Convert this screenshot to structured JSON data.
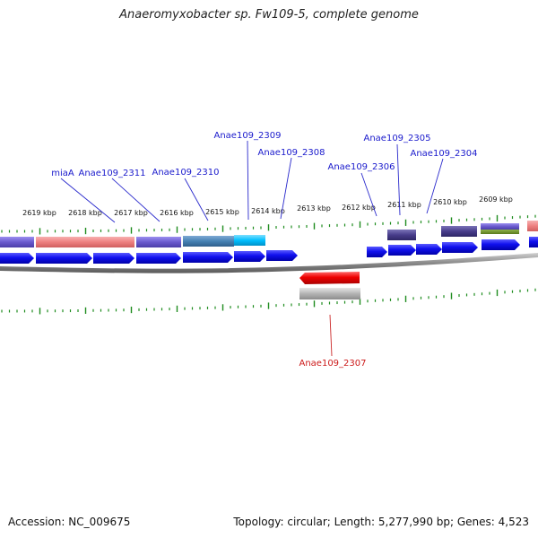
{
  "title": "Anaeromyxobacter sp. Fw109-5, complete genome",
  "footer": {
    "accession": "Accession: NC_009675",
    "summary": "Topology: circular; Length: 5,277,990 bp; Genes: 4,523"
  },
  "colors": {
    "background": "#ffffff",
    "tick": "#1e8c1e",
    "forward_gene": "#1414f0",
    "reverse_gene": "#ee1111",
    "forward_label": "#1a1acc",
    "reverse_label": "#cc1a1a",
    "backbone": "#8a8a8a"
  },
  "ticks": [
    {
      "label": "2619 kbp"
    },
    {
      "label": "2618 kbp"
    },
    {
      "label": "2617 kbp"
    },
    {
      "label": "2616 kbp"
    },
    {
      "label": "2615 kbp"
    },
    {
      "label": "2614 kbp"
    },
    {
      "label": "2613 kbp"
    },
    {
      "label": "2612 kbp"
    },
    {
      "label": "2611 kbp"
    },
    {
      "label": "2610 kbp"
    },
    {
      "label": "2609 kbp"
    }
  ],
  "gene_labels": [
    {
      "text": "miaA",
      "strand": "forward"
    },
    {
      "text": "Anae109_2311",
      "strand": "forward"
    },
    {
      "text": "Anae109_2310",
      "strand": "forward"
    },
    {
      "text": "Anae109_2309",
      "strand": "forward"
    },
    {
      "text": "Anae109_2308",
      "strand": "forward"
    },
    {
      "text": "Anae109_2306",
      "strand": "forward"
    },
    {
      "text": "Anae109_2305",
      "strand": "forward"
    },
    {
      "text": "Anae109_2304",
      "strand": "forward"
    },
    {
      "text": "Anae109_2307",
      "strand": "reverse"
    }
  ]
}
